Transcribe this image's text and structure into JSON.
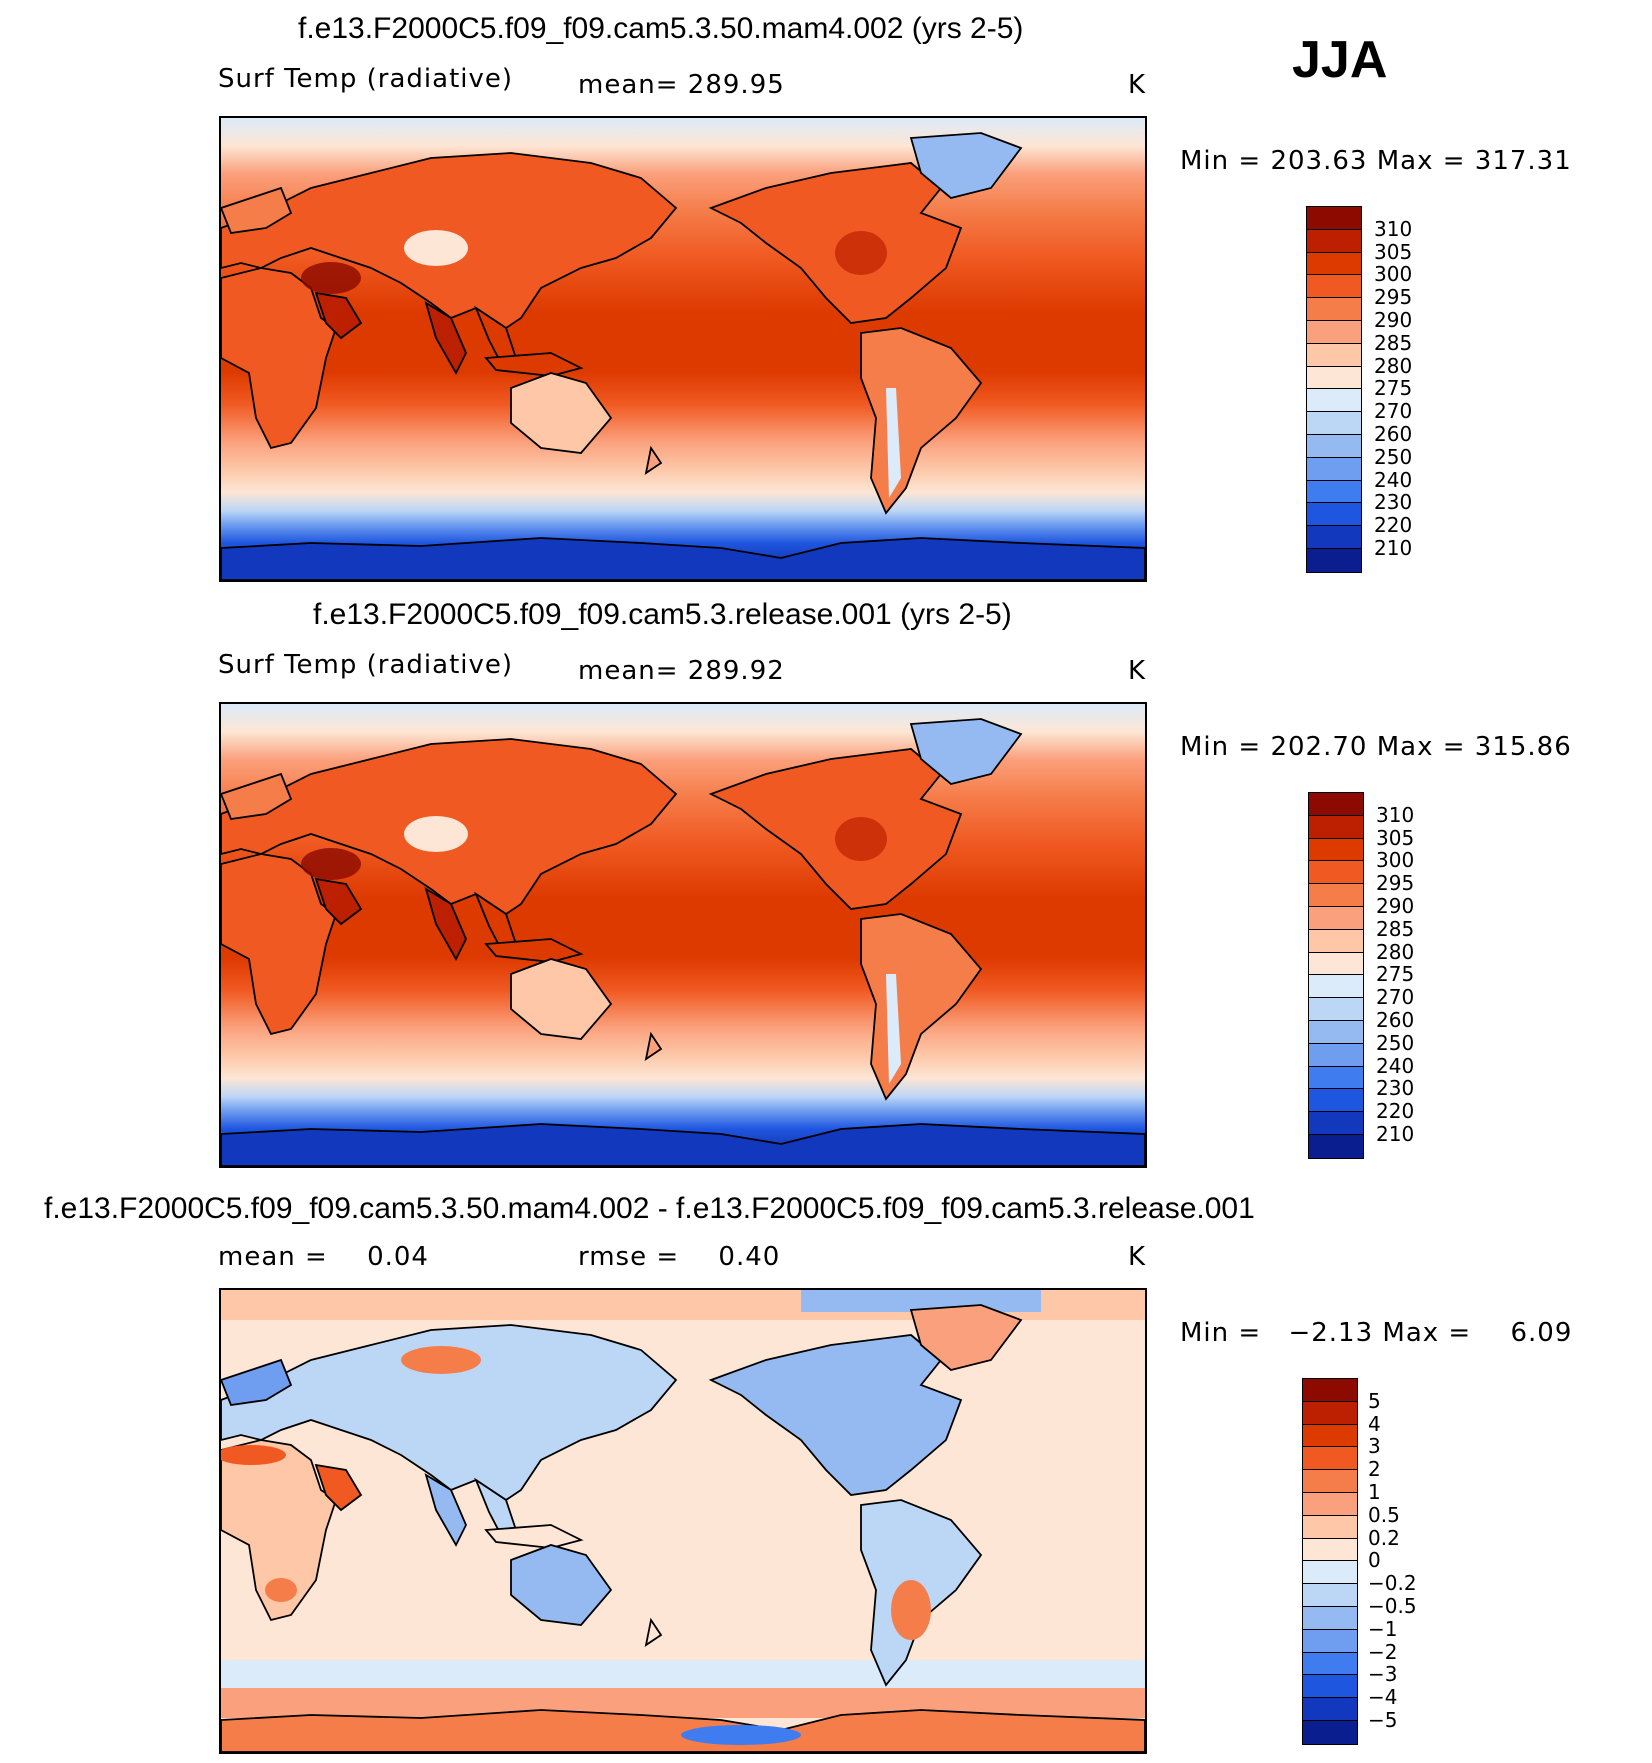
{
  "season": "JJA",
  "panels": [
    {
      "title": "f.e13.F2000C5.f09_f09.cam5.3.50.mam4.002 (yrs 2-5)",
      "variable": "Surf Temp (radiative)",
      "mean_label": "mean=",
      "mean_value": "289.95",
      "units": "K",
      "min_label": "Min =",
      "min_value": "203.63",
      "max_label": "Max =",
      "max_value": "317.31",
      "kind": "abs"
    },
    {
      "title": "f.e13.F2000C5.f09_f09.cam5.3.release.001 (yrs 2-5)",
      "variable": "Surf Temp (radiative)",
      "mean_label": "mean=",
      "mean_value": "289.92",
      "units": "K",
      "min_label": "Min =",
      "min_value": "202.70",
      "max_label": "Max =",
      "max_value": "315.86",
      "kind": "abs"
    },
    {
      "title": "f.e13.F2000C5.f09_f09.cam5.3.50.mam4.002 - f.e13.F2000C5.f09_f09.cam5.3.release.001",
      "mean_label": "mean =",
      "mean_value": "0.04",
      "rmse_label": "rmse =",
      "rmse_value": "0.40",
      "units": "K",
      "min_label": "Min =",
      "min_value": "−2.13",
      "max_label": "Max =",
      "max_value": "6.09",
      "kind": "diff"
    }
  ],
  "chart_data": [
    {
      "type": "heatmap",
      "title": "f.e13.F2000C5.f09_f09.cam5.3.50.mam4.002 (yrs 2-5)",
      "variable": "Surf Temp (radiative)",
      "units": "K",
      "mean": 289.95,
      "min": 203.63,
      "max": 317.31,
      "projection": "cylindrical equidistant, 0-360 longitude centered on Pacific",
      "colorbar_levels": [
        "310",
        "305",
        "300",
        "295",
        "290",
        "285",
        "280",
        "275",
        "270",
        "260",
        "250",
        "240",
        "230",
        "220",
        "210"
      ],
      "colorbar_colors": [
        "#8c0a00",
        "#bd2000",
        "#dd3a00",
        "#f05a22",
        "#f57d4a",
        "#fba07c",
        "#fdc7a8",
        "#fde6d5",
        "#dcebfa",
        "#bcd6f6",
        "#95baf2",
        "#6f9df0",
        "#3f7cf0",
        "#1f56e0",
        "#1138bd",
        "#0a1e90"
      ]
    },
    {
      "type": "heatmap",
      "title": "f.e13.F2000C5.f09_f09.cam5.3.release.001 (yrs 2-5)",
      "variable": "Surf Temp (radiative)",
      "units": "K",
      "mean": 289.92,
      "min": 202.7,
      "max": 315.86,
      "colorbar_levels": [
        "310",
        "305",
        "300",
        "295",
        "290",
        "285",
        "280",
        "275",
        "270",
        "260",
        "250",
        "240",
        "230",
        "220",
        "210"
      ],
      "colorbar_colors": [
        "#8c0a00",
        "#bd2000",
        "#dd3a00",
        "#f05a22",
        "#f57d4a",
        "#fba07c",
        "#fdc7a8",
        "#fde6d5",
        "#dcebfa",
        "#bcd6f6",
        "#95baf2",
        "#6f9df0",
        "#3f7cf0",
        "#1f56e0",
        "#1138bd",
        "#0a1e90"
      ]
    },
    {
      "type": "heatmap",
      "title": "f.e13.F2000C5.f09_f09.cam5.3.50.mam4.002 - f.e13.F2000C5.f09_f09.cam5.3.release.001",
      "units": "K",
      "mean": 0.04,
      "rmse": 0.4,
      "min": -2.13,
      "max": 6.09,
      "colorbar_levels": [
        "5",
        "4",
        "3",
        "2",
        "1",
        "0.5",
        "0.2",
        "0",
        "−0.2",
        "−0.5",
        "−1",
        "−2",
        "−3",
        "−4",
        "−5"
      ],
      "colorbar_colors": [
        "#8c0a00",
        "#bd2000",
        "#dd3a00",
        "#f05a22",
        "#f57d4a",
        "#fba07c",
        "#fdc7a8",
        "#fde6d5",
        "#dcebfa",
        "#bcd6f6",
        "#95baf2",
        "#6f9df0",
        "#3f7cf0",
        "#1f56e0",
        "#1138bd",
        "#0a1e90"
      ]
    }
  ]
}
